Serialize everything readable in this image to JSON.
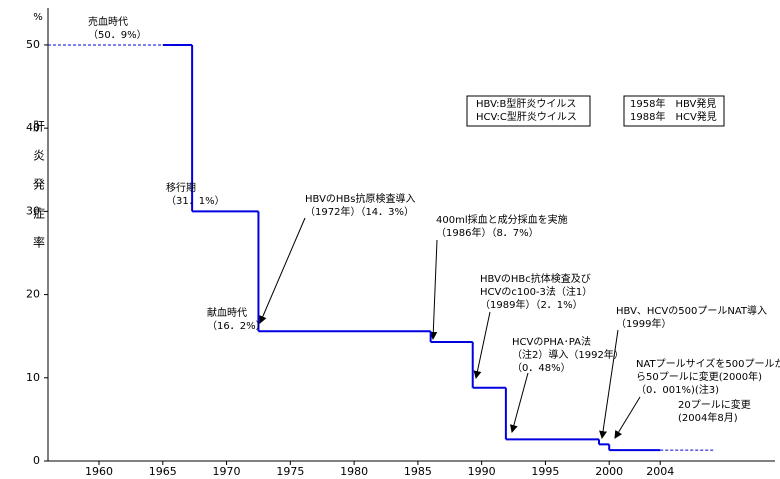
{
  "chart_data": {
    "type": "step",
    "y_unit": "%",
    "y_label": "肝炎発症率",
    "xlim": [
      1956,
      2013
    ],
    "ylim": [
      0,
      53
    ],
    "xticks": [
      1960,
      1965,
      1970,
      1975,
      1980,
      1985,
      1990,
      1995,
      2000,
      2004
    ],
    "yticks": [
      0,
      10,
      20,
      30,
      40,
      50
    ],
    "color": "#0000e0",
    "series": [
      {
        "x": [
          1956,
          1965
        ],
        "values": [
          50,
          50
        ],
        "dashed": true
      },
      {
        "x": [
          1965,
          1967.3,
          1972.5,
          1986,
          1989.3,
          1991.9,
          1999.2,
          2000,
          2004
        ],
        "values": [
          50,
          30,
          15.6,
          14.3,
          8.8,
          2.6,
          2.0,
          1.3,
          1.3
        ],
        "dashed": false
      },
      {
        "x": [
          2004,
          2008.3
        ],
        "values": [
          1.3,
          1.3
        ],
        "dashed": true
      }
    ],
    "annotations": [
      {
        "lines": [
          "売血時代",
          "（50．9%）"
        ]
      },
      {
        "lines": [
          "移行期",
          "（31．1%）"
        ]
      },
      {
        "lines": [
          "献血時代",
          "（16．2%）"
        ]
      },
      {
        "lines": [
          "HBVのHBs抗原検査導入",
          "（1972年）（14．3%）"
        ]
      },
      {
        "lines": [
          "400ml採血と成分採血を実施",
          "（1986年）（8．7%）"
        ]
      },
      {
        "lines": [
          "HBVのHBc抗体検査及び",
          "HCVのc100-3法（注1）",
          "（1989年）（2．1%）"
        ]
      },
      {
        "lines": [
          "HCVのPHA･PA法",
          "（注2）導入（1992年）",
          "（0．48%）"
        ]
      },
      {
        "lines": [
          "HBV、HCVの500プールNAT導入",
          "（1999年）"
        ]
      },
      {
        "lines": [
          "NATプールサイズを500プールか",
          "ら50プールに変更(2000年)",
          "（0．001%)(注3)"
        ]
      },
      {
        "lines": [
          "20プールに変更",
          "(2004年8月)"
        ]
      }
    ],
    "legend_boxes": [
      {
        "lines": [
          "HBV:B型肝炎ウイルス",
          "HCV:C型肝炎ウイルス"
        ]
      },
      {
        "lines": [
          "1958年　HBV発見",
          "1988年　HCV発見"
        ]
      }
    ]
  }
}
